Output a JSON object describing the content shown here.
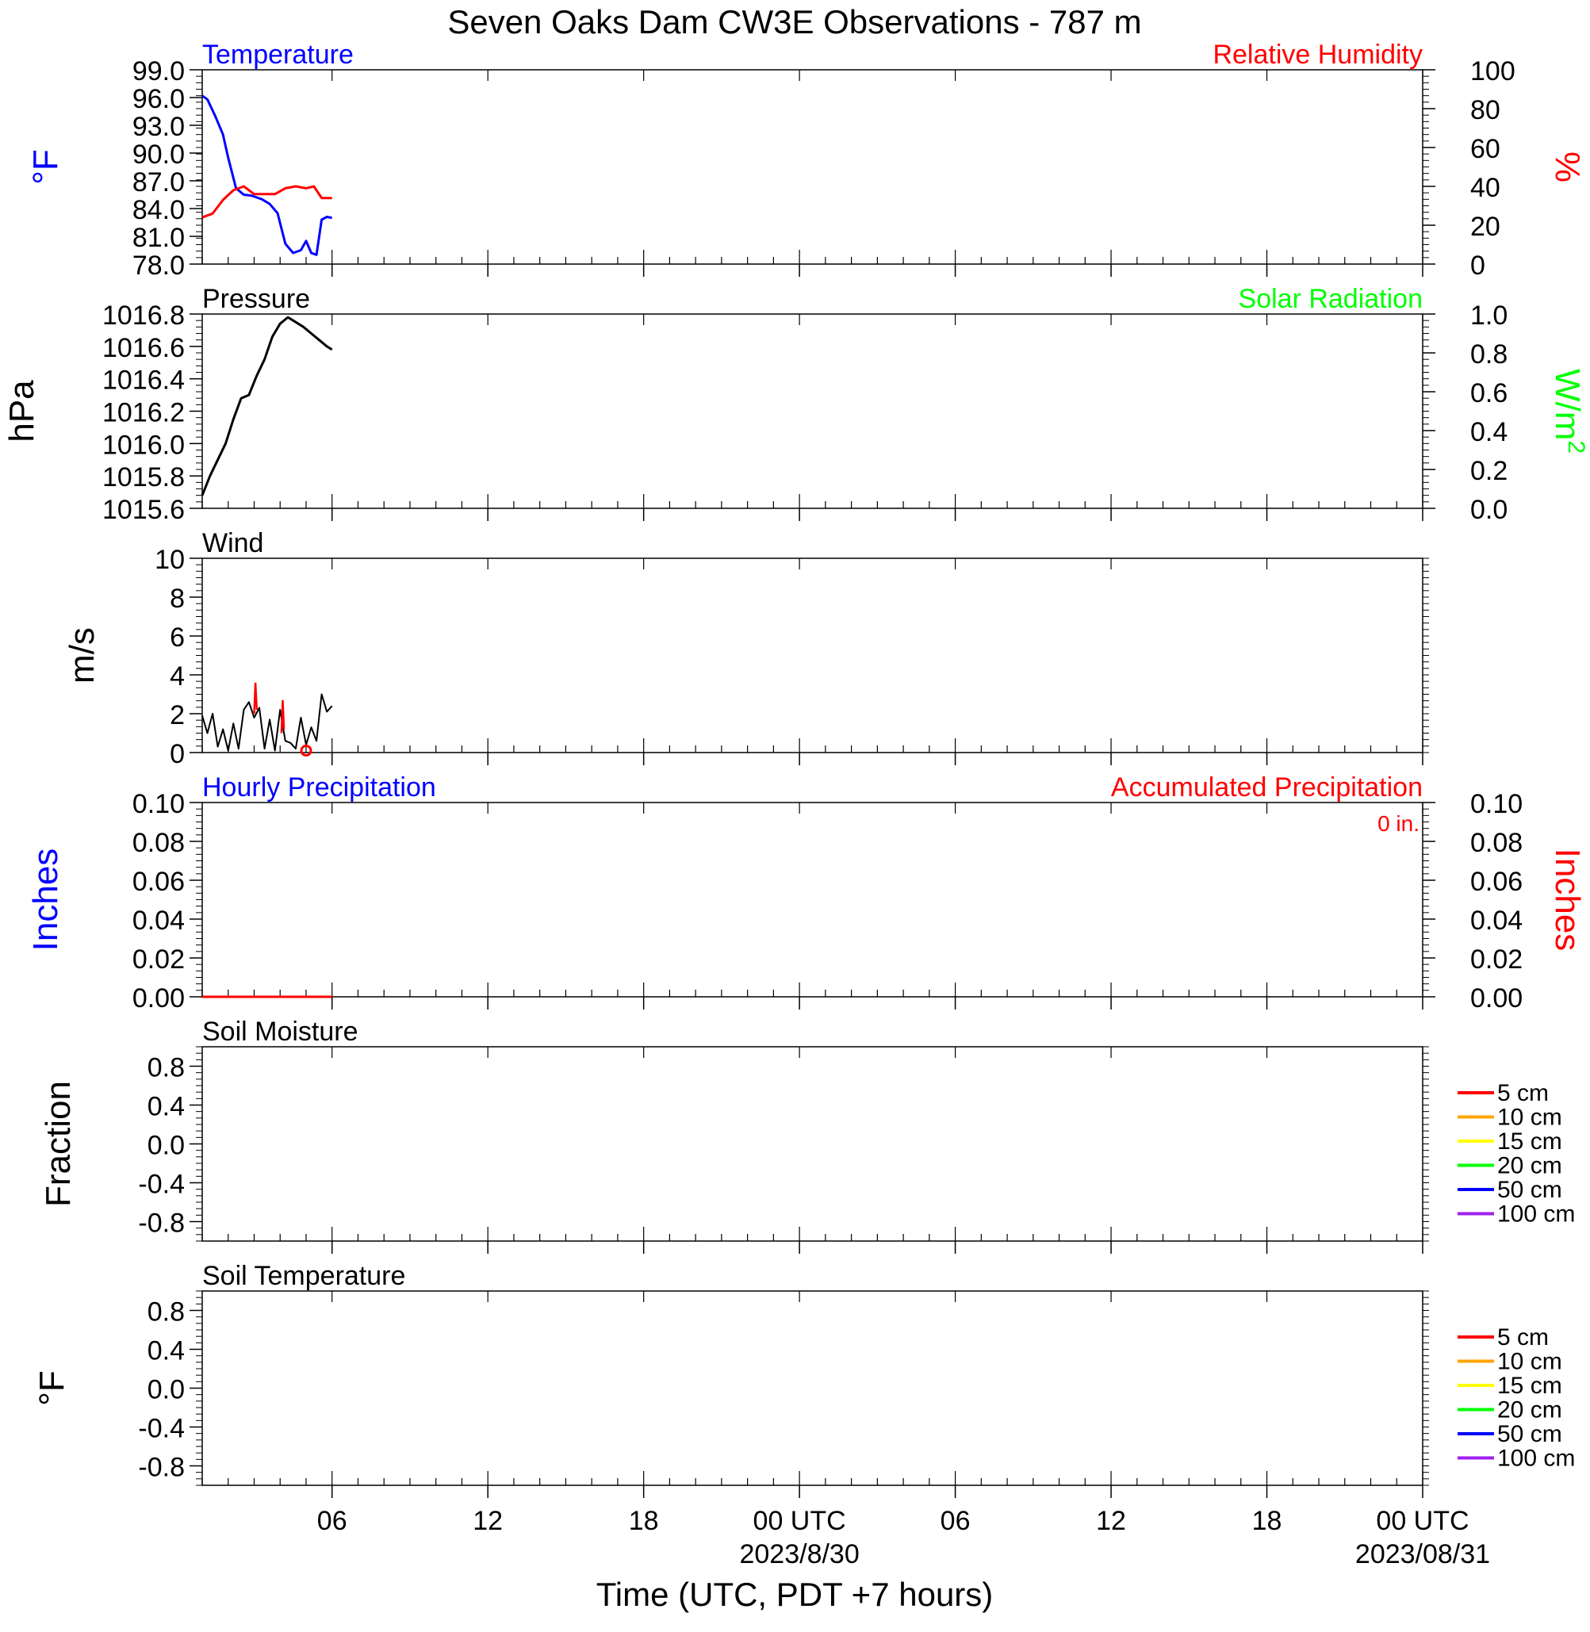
{
  "title": "Seven Oaks Dam CW3E Observations - 787 m",
  "xlabel": "Time (UTC, PDT +7 hours)",
  "x_ticks": [
    {
      "hour": 6,
      "label": "06",
      "sub": ""
    },
    {
      "hour": 12,
      "label": "12",
      "sub": ""
    },
    {
      "hour": 18,
      "label": "18",
      "sub": ""
    },
    {
      "hour": 24,
      "label": "00 UTC",
      "sub": "2023/8/30"
    },
    {
      "hour": 30,
      "label": "06",
      "sub": ""
    },
    {
      "hour": 36,
      "label": "12",
      "sub": ""
    },
    {
      "hour": 42,
      "label": "18",
      "sub": ""
    },
    {
      "hour": 48,
      "label": "00 UTC",
      "sub": "2023/08/31"
    }
  ],
  "x_range": [
    1,
    48
  ],
  "colors": {
    "temperature": "#0000ff",
    "humidity": "#ff0000",
    "pressure": "#000000",
    "solar": "#00ff00",
    "wind": "#000000",
    "gust": "#ff0000",
    "precip_hourly": "#0000ff",
    "precip_accum": "#ff0000"
  },
  "chart_data": [
    {
      "type": "line",
      "panel": "temperature-humidity",
      "left_title": "Temperature",
      "right_title": "Relative Humidity",
      "ylabel": "°F",
      "ylabel_right": "%",
      "ylim": [
        78,
        99
      ],
      "yticks": [
        "99.0",
        "96.0",
        "93.0",
        "90.0",
        "87.0",
        "84.0",
        "81.0",
        "78.0"
      ],
      "ylim_right": [
        0,
        100
      ],
      "yticks_right": [
        "100",
        "80",
        "60",
        "40",
        "20",
        "0"
      ],
      "series": [
        {
          "name": "Temperature",
          "axis": "left",
          "x": [
            1.0,
            1.2,
            1.5,
            1.8,
            2.0,
            2.3,
            2.6,
            2.9,
            3.1,
            3.3,
            3.6,
            3.9,
            4.2,
            4.5,
            4.8,
            5.0,
            5.2,
            5.4,
            5.6,
            5.8,
            6.0
          ],
          "y": [
            96.2,
            95.8,
            94.0,
            92.0,
            89.5,
            86.2,
            85.5,
            85.4,
            85.2,
            85.0,
            84.5,
            83.5,
            80.2,
            79.2,
            79.5,
            80.5,
            79.2,
            79.0,
            82.8,
            83.1,
            83.0
          ]
        },
        {
          "name": "Relative Humidity",
          "axis": "right",
          "x": [
            1.0,
            1.4,
            1.8,
            2.2,
            2.6,
            3.0,
            3.4,
            3.8,
            4.2,
            4.6,
            5.0,
            5.3,
            5.6,
            6.0
          ],
          "y": [
            24,
            26,
            33,
            38,
            40,
            36,
            36,
            36,
            39,
            40,
            39,
            40,
            34,
            34
          ]
        }
      ]
    },
    {
      "type": "line",
      "panel": "pressure-solar",
      "left_title": "Pressure",
      "right_title": "Solar Radiation",
      "ylabel": "hPa",
      "ylabel_right": "W/m",
      "ylabel_right_sup": "2",
      "ylim": [
        1015.6,
        1016.8
      ],
      "yticks": [
        "1016.8",
        "1016.6",
        "1016.4",
        "1016.2",
        "1016.0",
        "1015.8",
        "1015.6"
      ],
      "ylim_right": [
        0,
        1
      ],
      "yticks_right": [
        "1.0",
        "0.8",
        "0.6",
        "0.4",
        "0.2",
        "0.0"
      ],
      "series": [
        {
          "name": "Pressure",
          "axis": "left",
          "x": [
            1.0,
            1.3,
            1.6,
            1.9,
            2.2,
            2.5,
            2.8,
            3.1,
            3.4,
            3.7,
            4.0,
            4.3,
            4.6,
            4.9,
            5.2,
            5.5,
            5.8,
            6.0
          ],
          "y": [
            1015.68,
            1015.8,
            1015.9,
            1016.0,
            1016.15,
            1016.28,
            1016.3,
            1016.42,
            1016.52,
            1016.66,
            1016.74,
            1016.78,
            1016.75,
            1016.72,
            1016.68,
            1016.64,
            1016.6,
            1016.58
          ]
        }
      ]
    },
    {
      "type": "line",
      "panel": "wind",
      "left_title": "Wind",
      "ylabel": "m/s",
      "ylim": [
        0,
        10
      ],
      "yticks": [
        "10",
        "8",
        "6",
        "4",
        "2",
        "0"
      ],
      "series": [
        {
          "name": "Wind Speed",
          "axis": "left",
          "x": [
            1.0,
            1.2,
            1.4,
            1.6,
            1.8,
            2.0,
            2.2,
            2.4,
            2.6,
            2.8,
            3.0,
            3.2,
            3.4,
            3.6,
            3.8,
            4.0,
            4.2,
            4.4,
            4.6,
            4.8,
            5.0,
            5.2,
            5.4,
            5.6,
            5.8,
            6.0
          ],
          "y": [
            1.9,
            1.0,
            2.0,
            0.3,
            1.2,
            0.1,
            1.5,
            0.2,
            2.2,
            2.6,
            1.8,
            2.3,
            0.2,
            1.7,
            0.1,
            2.2,
            0.6,
            0.5,
            0.2,
            1.8,
            0.4,
            1.3,
            0.6,
            3.0,
            2.1,
            2.4
          ]
        },
        {
          "name": "Wind Gust",
          "axis": "left",
          "x": [
            3.0,
            3.05,
            3.1,
            4.05,
            4.1,
            4.15
          ],
          "y": [
            2.0,
            3.6,
            2.2,
            1.0,
            2.7,
            1.2
          ]
        }
      ],
      "markers": [
        {
          "x": 5.0,
          "y": 0.1
        }
      ]
    },
    {
      "type": "line",
      "panel": "precipitation",
      "left_title": "Hourly Precipitation",
      "right_title": "Accumulated Precipitation",
      "annotation": "0 in.",
      "ylabel": "Inches",
      "ylabel_right": "Inches",
      "ylim": [
        0,
        0.1
      ],
      "yticks": [
        "0.10",
        "0.08",
        "0.06",
        "0.04",
        "0.02",
        "0.00"
      ],
      "ylim_right": [
        0,
        0.1
      ],
      "yticks_right": [
        "0.10",
        "0.08",
        "0.06",
        "0.04",
        "0.02",
        "0.00"
      ],
      "series": [
        {
          "name": "Accumulated Precipitation",
          "axis": "left",
          "x": [
            1.0,
            6.0
          ],
          "y": [
            0,
            0
          ]
        }
      ]
    },
    {
      "type": "line",
      "panel": "soil-moisture",
      "left_title": "Soil Moisture",
      "ylabel": "Fraction",
      "ylim": [
        -1,
        1
      ],
      "yticks": [
        "0.8",
        "0.4",
        "0.0",
        "-0.4",
        "-0.8"
      ],
      "ytick_values": [
        0.8,
        0.4,
        0.0,
        -0.4,
        -0.8
      ],
      "legend": [
        {
          "label": "5 cm",
          "color": "#ff0000"
        },
        {
          "label": "10 cm",
          "color": "#ffa500"
        },
        {
          "label": "15 cm",
          "color": "#ffff00"
        },
        {
          "label": "20 cm",
          "color": "#00ff00"
        },
        {
          "label": "50 cm",
          "color": "#0000ff"
        },
        {
          "label": "100 cm",
          "color": "#a020f0"
        }
      ],
      "series": []
    },
    {
      "type": "line",
      "panel": "soil-temperature",
      "left_title": "Soil Temperature",
      "ylabel": "°F",
      "ylim": [
        -1,
        1
      ],
      "yticks": [
        "0.8",
        "0.4",
        "0.0",
        "-0.4",
        "-0.8"
      ],
      "ytick_values": [
        0.8,
        0.4,
        0.0,
        -0.4,
        -0.8
      ],
      "legend": [
        {
          "label": "5 cm",
          "color": "#ff0000"
        },
        {
          "label": "10 cm",
          "color": "#ffa500"
        },
        {
          "label": "15 cm",
          "color": "#ffff00"
        },
        {
          "label": "20 cm",
          "color": "#00ff00"
        },
        {
          "label": "50 cm",
          "color": "#0000ff"
        },
        {
          "label": "100 cm",
          "color": "#a020f0"
        }
      ],
      "series": []
    }
  ]
}
